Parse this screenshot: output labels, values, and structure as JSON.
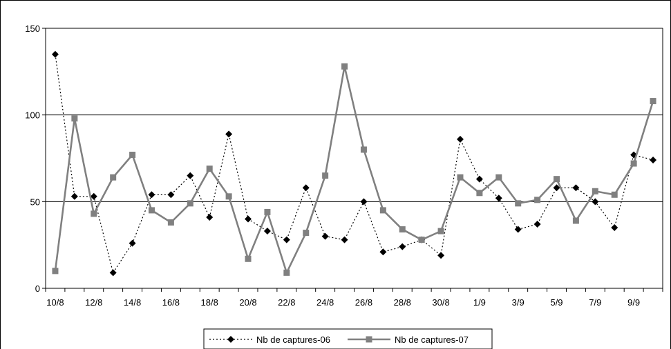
{
  "chart_data": {
    "type": "line",
    "x": [
      "10/8",
      "11/8",
      "12/8",
      "13/8",
      "14/8",
      "15/8",
      "16/8",
      "17/8",
      "18/8",
      "19/8",
      "20/8",
      "21/8",
      "22/8",
      "23/8",
      "24/8",
      "25/8",
      "26/8",
      "27/8",
      "28/8",
      "29/8",
      "30/8",
      "31/8",
      "1/9",
      "2/9",
      "3/9",
      "4/9",
      "5/9",
      "6/9",
      "7/9",
      "8/9",
      "9/9",
      "10/9"
    ],
    "x_tick_labels": [
      "10/8",
      "12/8",
      "14/8",
      "16/8",
      "18/8",
      "20/8",
      "22/8",
      "24/8",
      "26/8",
      "28/8",
      "30/8",
      "1/9",
      "3/9",
      "5/9",
      "7/9",
      "9/9"
    ],
    "ylim": [
      0,
      150
    ],
    "y_ticks": [
      0,
      50,
      100,
      150
    ],
    "grid": "horizontal",
    "legend_position": "bottom",
    "series": [
      {
        "name": "Nb de captures-06",
        "style": "dotted",
        "marker": "diamond",
        "color": "#000000",
        "values": [
          135,
          53,
          53,
          9,
          26,
          54,
          54,
          65,
          41,
          89,
          40,
          33,
          28,
          58,
          30,
          28,
          50,
          21,
          24,
          28,
          19,
          86,
          63,
          52,
          34,
          37,
          58,
          58,
          50,
          35,
          77,
          74
        ]
      },
      {
        "name": "Nb de captures-07",
        "style": "solid",
        "marker": "square",
        "color": "#808080",
        "values": [
          10,
          98,
          43,
          64,
          77,
          45,
          38,
          49,
          69,
          53,
          17,
          44,
          9,
          32,
          65,
          128,
          80,
          45,
          34,
          28,
          33,
          64,
          55,
          64,
          49,
          51,
          63,
          39,
          56,
          54,
          72,
          108
        ]
      }
    ]
  }
}
